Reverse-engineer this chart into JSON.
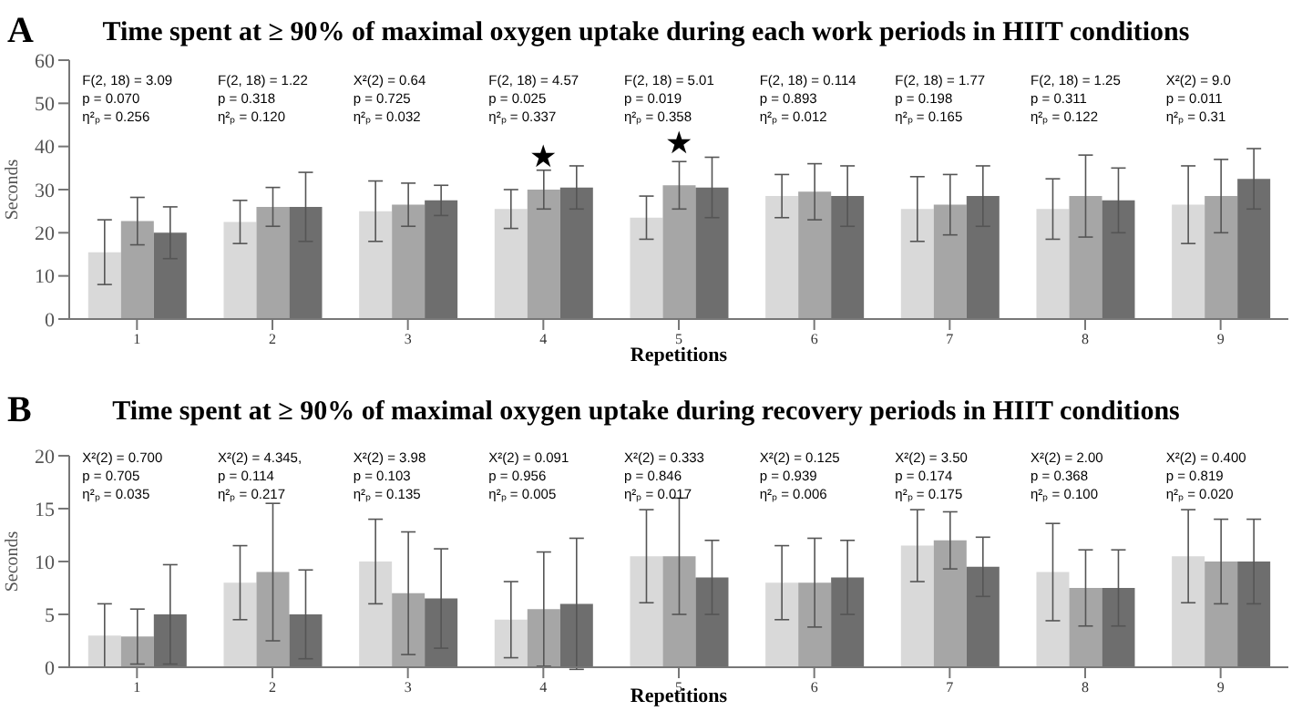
{
  "chart_data": [
    {
      "type": "bar",
      "title": "Time spent at ≥ 90% of maximal oxygen uptake during each work periods in HIIT conditions",
      "xlabel": "Repetitions",
      "ylabel": "Seconds",
      "categories": [
        "1",
        "2",
        "3",
        "4",
        "5",
        "6",
        "7",
        "8",
        "9"
      ],
      "series": [
        {
          "color": "#d9d9d9",
          "values": [
            15.5,
            22.5,
            25,
            25.5,
            23.5,
            28.5,
            25.5,
            25.5,
            26.5
          ],
          "errors": [
            7.5,
            5,
            7,
            4.5,
            5,
            5,
            7.5,
            7,
            9
          ]
        },
        {
          "color": "#a6a6a6",
          "values": [
            22.7,
            26,
            26.5,
            30,
            31,
            29.5,
            26.5,
            28.5,
            28.5
          ],
          "errors": [
            5.5,
            4.5,
            5,
            4.5,
            5.5,
            6.5,
            7,
            9.5,
            8.5
          ]
        },
        {
          "color": "#6e6e6e",
          "values": [
            20,
            26,
            27.5,
            30.5,
            30.5,
            28.5,
            28.5,
            27.5,
            32.5
          ],
          "errors": [
            6,
            8,
            3.5,
            5,
            7,
            7,
            7,
            7.5,
            7
          ]
        }
      ],
      "ylim": [
        0,
        60
      ],
      "yticks": [
        0,
        10,
        20,
        30,
        40,
        50,
        60
      ],
      "grid": false,
      "legend": false,
      "annotations": [
        "A",
        "F(2, 18) = 3.09\np = 0.070\nη²ₚ = 0.256",
        "F(2, 18) = 1.22\np = 0.318\nη²ₚ = 0.120",
        "X²(2) = 0.64\np = 0.725\nη²ₚ = 0.032",
        "F(2, 18) = 4.57\np = 0.025\nη²ₚ =  0.337",
        "F(2, 18) = 5.01\np = 0.019\nη²ₚ = 0.358",
        "F(2, 18) = 0.114\np = 0.893\nη²ₚ = 0.012",
        "F(2, 18) = 1.77\np = 0.198\nη²ₚ = 0.165",
        "F(2, 18) = 1.25\np = 0.311\nη²ₚ = 0.122",
        "X²(2) = 9.0\np = 0.011\nη²ₚ = 0.31",
        "★",
        "★"
      ]
    },
    {
      "type": "bar",
      "title": "Time spent at ≥ 90% of maximal oxygen uptake during recovery periods in HIIT conditions",
      "xlabel": "Repetitions",
      "ylabel": "Seconds",
      "categories": [
        "1",
        "2",
        "3",
        "4",
        "5",
        "6",
        "7",
        "8",
        "9"
      ],
      "series": [
        {
          "color": "#d9d9d9",
          "values": [
            3,
            8,
            10,
            4.5,
            10.5,
            8,
            11.5,
            9,
            10.5
          ],
          "errors": [
            3,
            3.5,
            4,
            3.6,
            4.4,
            3.5,
            3.4,
            4.6,
            4.4
          ]
        },
        {
          "color": "#a6a6a6",
          "values": [
            2.9,
            9,
            7,
            5.5,
            10.5,
            8,
            12,
            7.5,
            10
          ],
          "errors": [
            2.6,
            6.5,
            5.8,
            5.4,
            5.5,
            4.2,
            2.7,
            3.6,
            4
          ]
        },
        {
          "color": "#6e6e6e",
          "values": [
            5,
            5,
            6.5,
            6,
            8.5,
            8.5,
            9.5,
            7.5,
            10
          ],
          "errors": [
            4.7,
            4.2,
            4.7,
            6.2,
            3.5,
            3.5,
            2.8,
            3.6,
            4
          ]
        }
      ],
      "ylim": [
        0,
        20
      ],
      "yticks": [
        0,
        5,
        10,
        15,
        20
      ],
      "grid": false,
      "legend": false,
      "annotations": [
        "B",
        "X²(2) = 0.700\np = 0.705\nη²ₚ = 0.035",
        "X²(2) = 4.345,\np = 0.114\nη²ₚ = 0.217",
        "X²(2) = 3.98\np = 0.103\nη²ₚ = 0.135",
        "X²(2) = 0.091\np = 0.956\nη²ₚ = 0.005",
        "X²(2) = 0.333\np = 0.846\nη²ₚ = 0.017",
        "X²(2) = 0.125\np = 0.939\nη²ₚ = 0.006",
        "X²(2) = 3.50\np = 0.174\nη²ₚ = 0.175",
        "X²(2) = 2.00\np = 0.368\nη²ₚ = 0.100",
        "X²(2) = 0.400\np = 0.819\nη²ₚ = 0.020"
      ]
    }
  ]
}
